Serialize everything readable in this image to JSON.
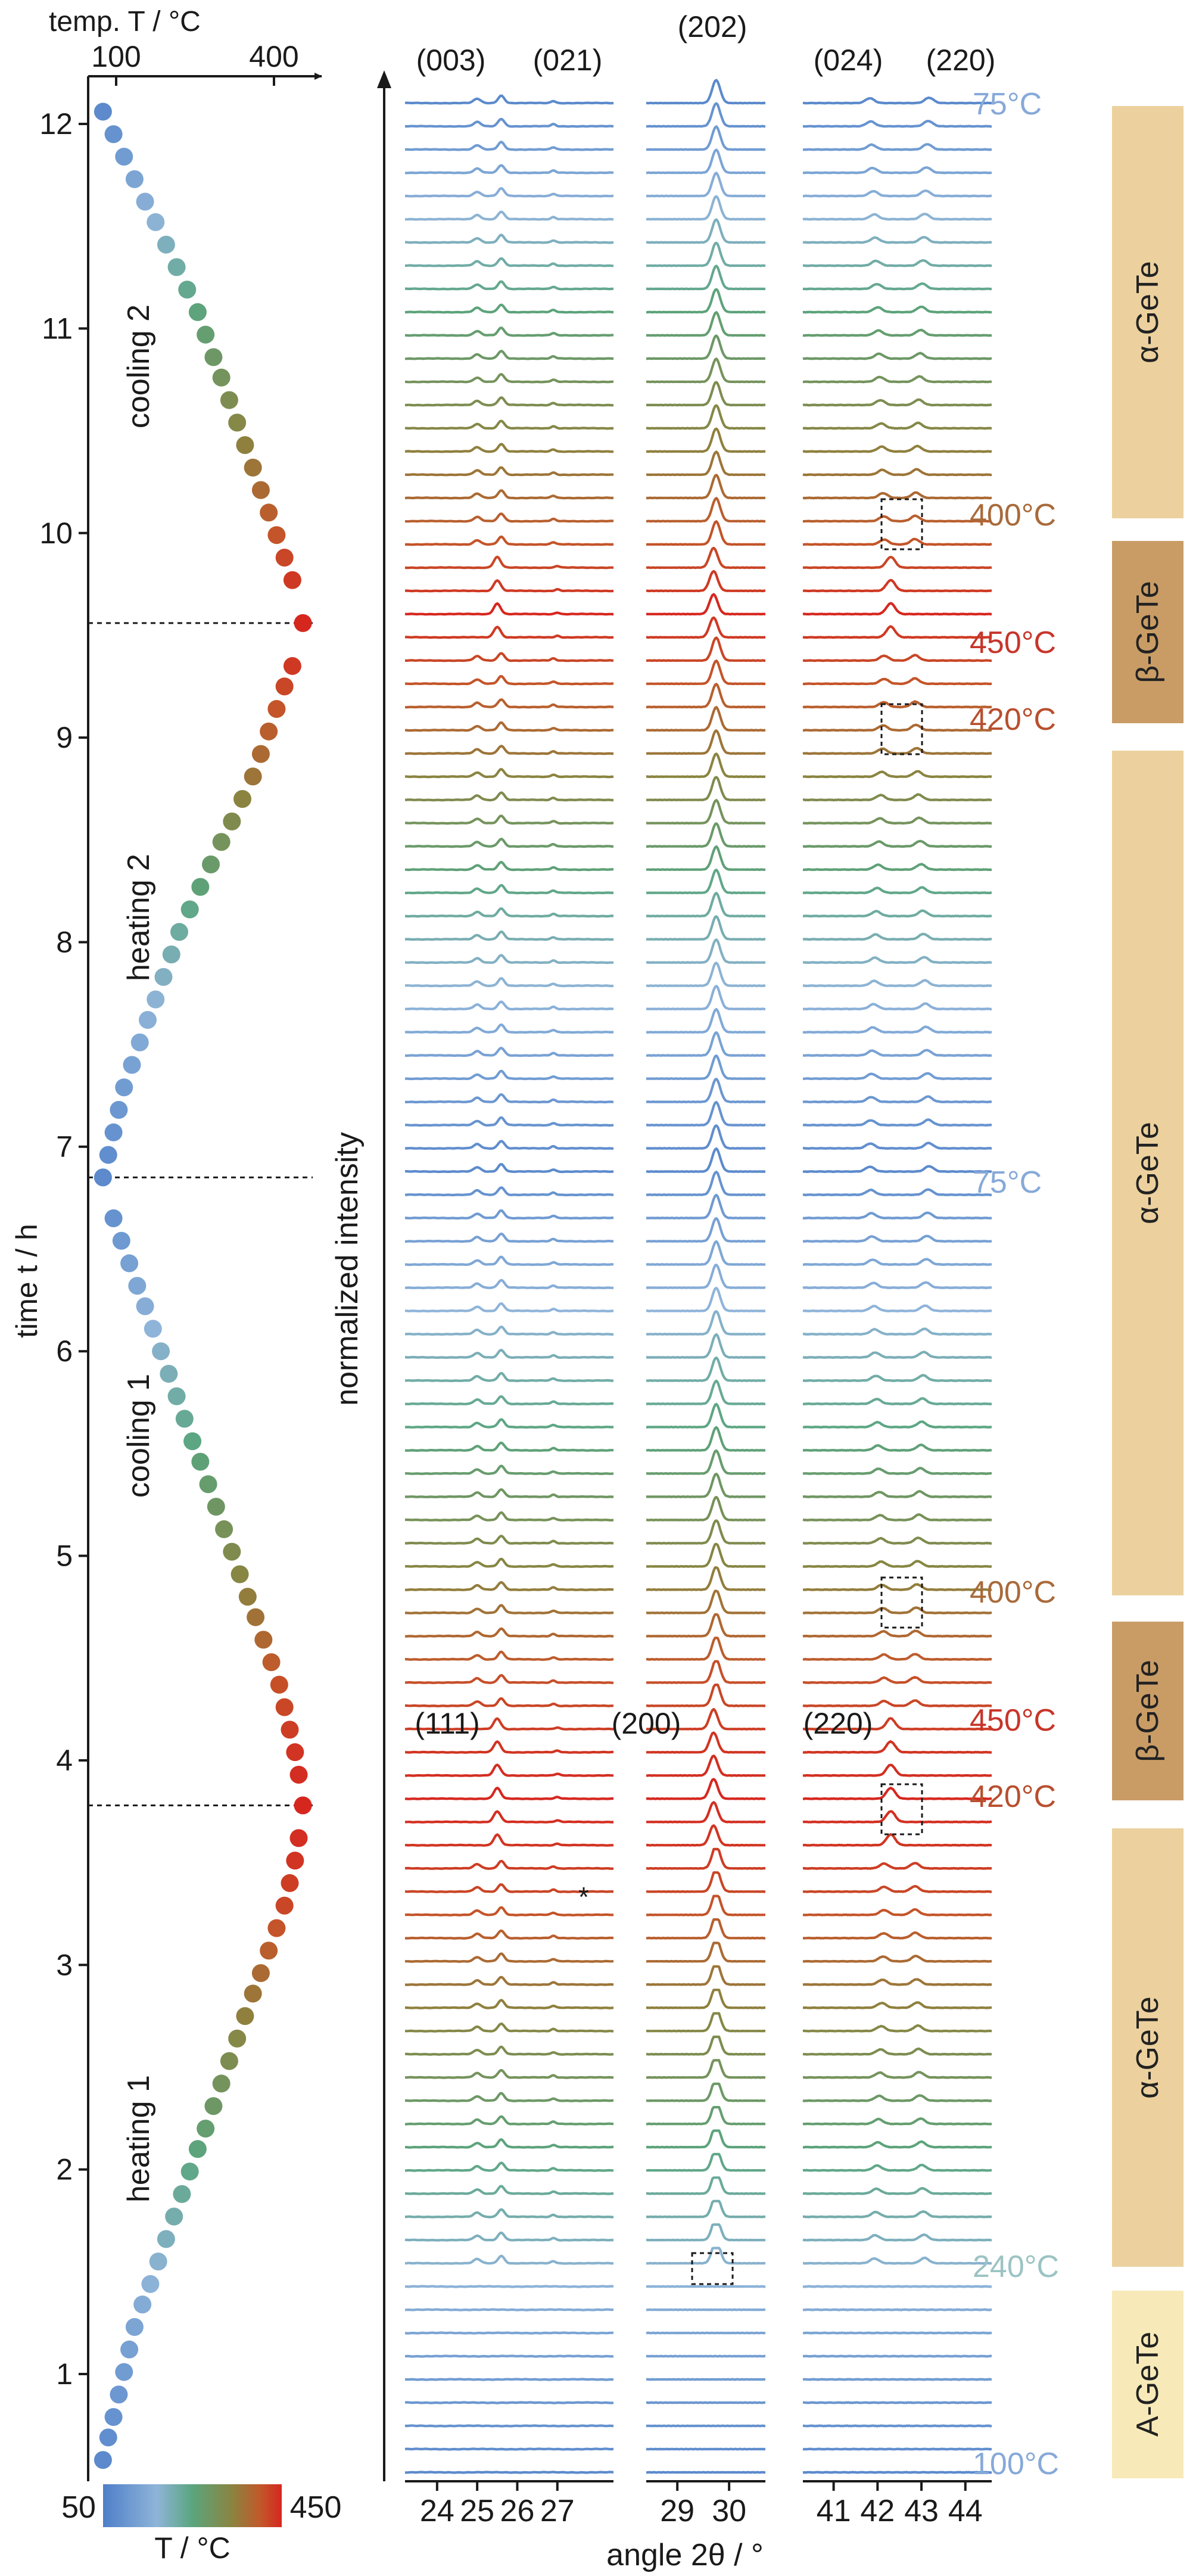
{
  "chart_data": {
    "type": "line",
    "left_panel": {
      "title": "temp. T / °C",
      "top_tick_labels": [
        "100",
        "400"
      ],
      "ylabel": "time t / h",
      "yticks": [
        "1",
        "2",
        "3",
        "4",
        "5",
        "6",
        "7",
        "8",
        "9",
        "10",
        "11",
        "12"
      ],
      "ylim": [
        0.5,
        12.3
      ],
      "xlim_temp": [
        50,
        450
      ],
      "colorbar_label": "T / °C",
      "colorbar_min": "50",
      "colorbar_max": "450",
      "segment_labels": [
        "heating 1",
        "cooling 1",
        "heating 2",
        "cooling 2"
      ],
      "turning_times": [
        3.78,
        6.85,
        9.56
      ],
      "dots_t": [
        0.58,
        0.69,
        0.79,
        0.9,
        1.01,
        1.12,
        1.23,
        1.34,
        1.44,
        1.55,
        1.66,
        1.77,
        1.88,
        1.99,
        2.1,
        2.2,
        2.31,
        2.42,
        2.53,
        2.64,
        2.75,
        2.86,
        2.96,
        3.07,
        3.18,
        3.29,
        3.4,
        3.51,
        3.62,
        3.78,
        3.93,
        4.04,
        4.15,
        4.26,
        4.37,
        4.48,
        4.59,
        4.7,
        4.8,
        4.91,
        5.02,
        5.13,
        5.24,
        5.35,
        5.46,
        5.56,
        5.67,
        5.78,
        5.89,
        6.0,
        6.11,
        6.22,
        6.32,
        6.43,
        6.54,
        6.65,
        6.85,
        6.96,
        7.07,
        7.18,
        7.29,
        7.4,
        7.51,
        7.62,
        7.72,
        7.83,
        7.94,
        8.05,
        8.16,
        8.27,
        8.38,
        8.49,
        8.59,
        8.7,
        8.81,
        8.92,
        9.03,
        9.14,
        9.25,
        9.35,
        9.56,
        9.77,
        9.88,
        9.99,
        10.1,
        10.21,
        10.32,
        10.43,
        10.54,
        10.65,
        10.76,
        10.86,
        10.97,
        11.08,
        11.19,
        11.3,
        11.41,
        11.52,
        11.62,
        11.73,
        11.84,
        11.95,
        12.06
      ],
      "dots_T": [
        75,
        85,
        95,
        105,
        115,
        125,
        135,
        150,
        165,
        180,
        195,
        210,
        225,
        240,
        255,
        270,
        285,
        300,
        315,
        330,
        345,
        360,
        375,
        390,
        405,
        420,
        430,
        440,
        447,
        455,
        447,
        440,
        430,
        420,
        410,
        395,
        380,
        365,
        350,
        335,
        320,
        305,
        290,
        275,
        260,
        245,
        230,
        215,
        200,
        185,
        170,
        155,
        140,
        125,
        110,
        95,
        75,
        85,
        95,
        105,
        115,
        130,
        145,
        160,
        175,
        190,
        205,
        220,
        240,
        260,
        280,
        300,
        320,
        340,
        360,
        375,
        390,
        405,
        420,
        435,
        455,
        435,
        420,
        405,
        390,
        375,
        360,
        345,
        330,
        315,
        300,
        285,
        270,
        255,
        235,
        215,
        195,
        175,
        155,
        135,
        115,
        95,
        75
      ]
    },
    "right_panel": {
      "xlabel": "angle 2θ / °",
      "ylabel": "normalized intensity",
      "ranges": [
        [
          23.2,
          28.4
        ],
        [
          28.4,
          30.7
        ],
        [
          40.3,
          44.6
        ]
      ],
      "xtick_labels": [
        [
          "24",
          "25",
          "26",
          "27"
        ],
        [
          "29",
          "30"
        ],
        [
          "41",
          "42",
          "43",
          "44"
        ]
      ],
      "xtick_values": [
        [
          24,
          25,
          26,
          27
        ],
        [
          29,
          30
        ],
        [
          41,
          42,
          43,
          44
        ]
      ],
      "top_reflections": [
        "(003)",
        "(021)",
        "(202)",
        "(024)",
        "(220)"
      ],
      "mid_reflections": [
        "(111)",
        "(200)",
        "(220)"
      ],
      "temperature_labels": [
        "75°C",
        "400°C",
        "450°C",
        "420°C",
        "75°C",
        "400°C",
        "450°C",
        "420°C",
        "240°C",
        "100°C"
      ],
      "phase_labels": [
        "α-GeTe",
        "β-GeTe",
        "α-GeTe",
        "β-GeTe",
        "α-GeTe",
        "A-GeTe"
      ],
      "asterisk": "*",
      "n_patterns": 103
    }
  }
}
